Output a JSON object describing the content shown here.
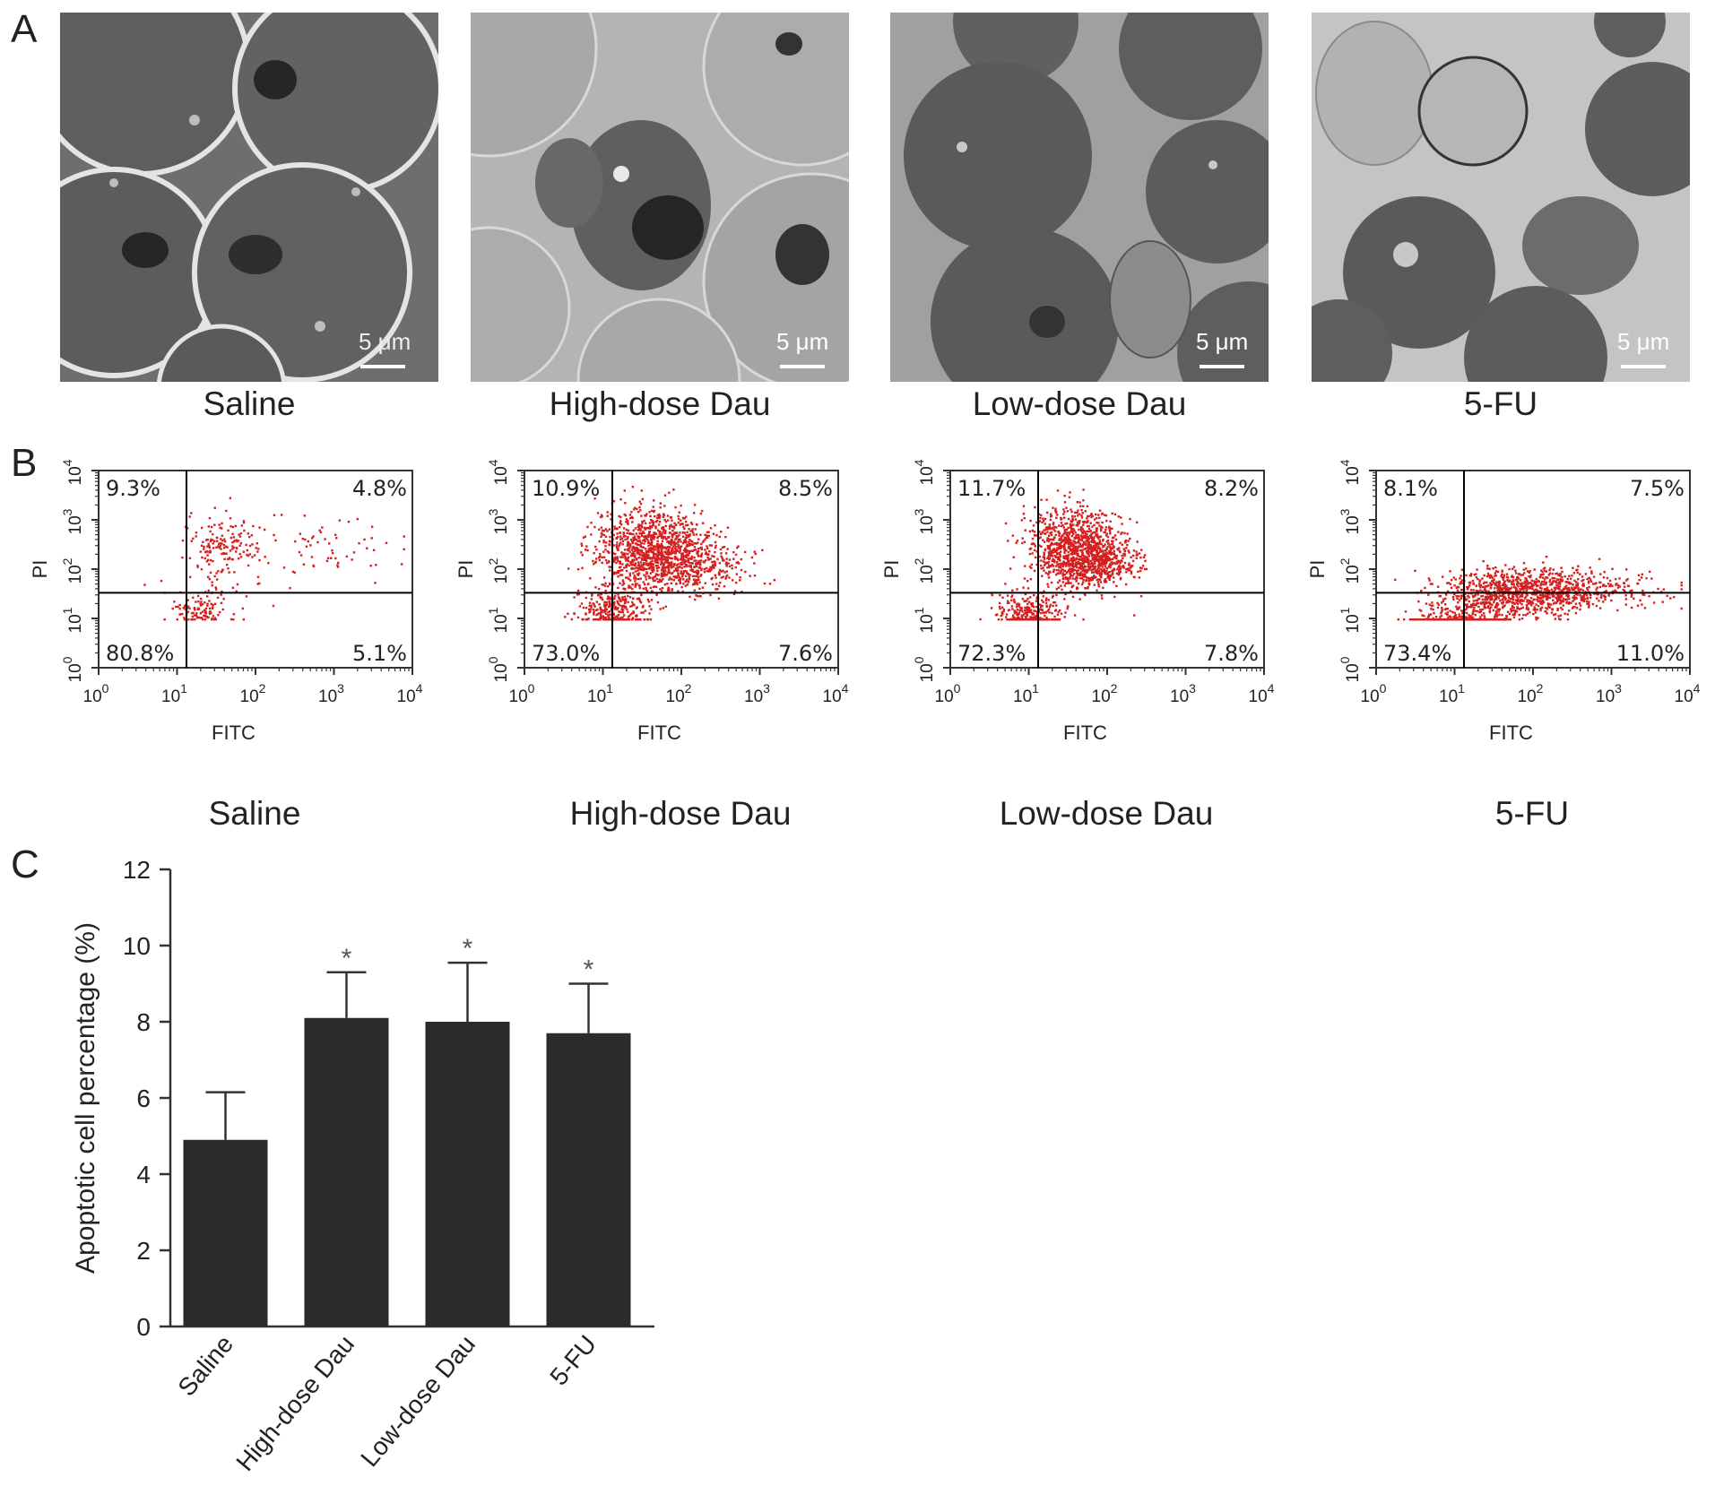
{
  "panels": {
    "a": "A",
    "b": "B",
    "c": "C"
  },
  "micrographs": [
    {
      "group": "Saline",
      "scale_bar": "5 μm"
    },
    {
      "group": "High-dose Dau",
      "scale_bar": "5 μm"
    },
    {
      "group": "Low-dose Dau",
      "scale_bar": "5 μm"
    },
    {
      "group": "5-FU",
      "scale_bar": "5 μm"
    }
  ],
  "flow_plots": [
    {
      "group": "Saline",
      "q_ul": "9.3%",
      "q_ur": "4.8%",
      "q_ll": "80.8%",
      "q_lr": "5.1%"
    },
    {
      "group": "High-dose Dau",
      "q_ul": "10.9%",
      "q_ur": "8.5%",
      "q_ll": "73.0%",
      "q_lr": "7.6%"
    },
    {
      "group": "Low-dose Dau",
      "q_ul": "11.7%",
      "q_ur": "8.2%",
      "q_ll": "72.3%",
      "q_lr": "7.8%"
    },
    {
      "group": "5-FU",
      "q_ul": "8.1%",
      "q_ur": "7.5%",
      "q_ll": "73.4%",
      "q_lr": "11.0%"
    }
  ],
  "flow_axes": {
    "xlabel": "FITC",
    "ylabel": "PI",
    "tick_base": "10",
    "tick_exponents": [
      "0",
      "1",
      "2",
      "3",
      "4"
    ]
  },
  "colors": {
    "dots": "#d42020",
    "bars": "#2b2b2b",
    "micro_tone": "#7a7a7a"
  },
  "chart_data": {
    "type": "bar",
    "categories": [
      "Saline",
      "High-dose Dau",
      "Low-dose Dau",
      "5-FU"
    ],
    "values": [
      4.9,
      8.1,
      8.0,
      7.7
    ],
    "error_upper": [
      6.15,
      9.3,
      9.55,
      9.0
    ],
    "significance": [
      "",
      "*",
      "*",
      "*"
    ],
    "ylabel": "Apoptotic cell percentage (%)",
    "xlabel": "",
    "ylim": [
      0,
      12
    ],
    "yticks": [
      0,
      2,
      4,
      6,
      8,
      10,
      12
    ]
  }
}
